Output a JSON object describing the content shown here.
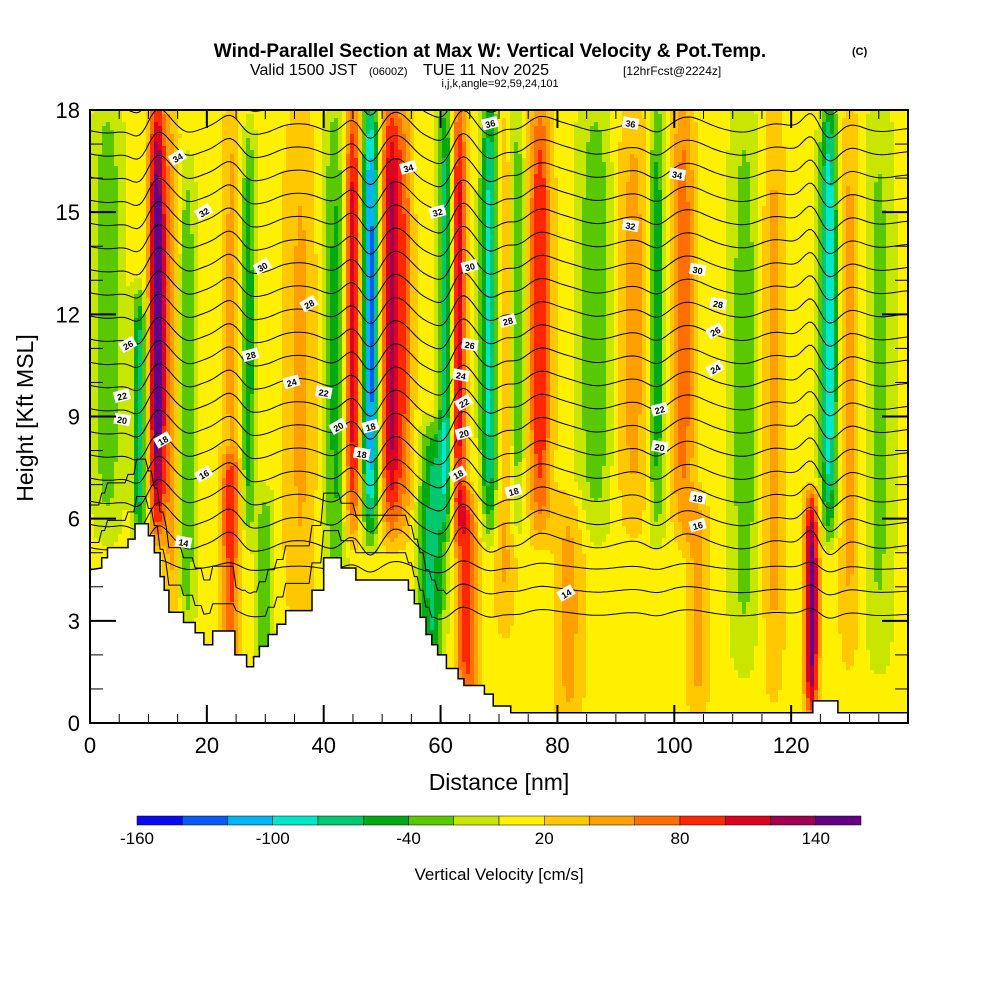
{
  "title": {
    "main": "Wind-Parallel Section at Max W: Vertical Velocity & Pot.Temp.",
    "copyright": "(C)",
    "valid_prefix": "Valid 1500 JST",
    "valid_utc": "(0600Z)",
    "valid_date": "TUE 11 Nov 2025",
    "forecast": "[12hrFcst@2224z]",
    "indices": "i,j,k,angle=92,59,24,101"
  },
  "chart_data": {
    "type": "heatmap",
    "title": "Wind-Parallel Section at Max W: Vertical Velocity & Pot.Temp.",
    "xlabel": "Distance [nm]",
    "ylabel": "Height [Kft MSL]",
    "xlim": [
      0,
      140
    ],
    "ylim": [
      0,
      18
    ],
    "x_ticks": [
      0,
      20,
      40,
      60,
      80,
      100,
      120
    ],
    "x_tick_labels": [
      "0",
      "20",
      "40",
      "60",
      "80",
      "100",
      "120"
    ],
    "x_minor_step": 5,
    "y_ticks": [
      0,
      3,
      6,
      9,
      12,
      15,
      18
    ],
    "y_tick_labels": [
      "0",
      "3",
      "6",
      "9",
      "12",
      "15",
      "18"
    ],
    "y_minor_step": 1,
    "colorbar": {
      "title": "Vertical Velocity [cm/s]",
      "levels": [
        -160,
        -140,
        -120,
        -100,
        -80,
        -60,
        -40,
        -20,
        0,
        20,
        40,
        60,
        80,
        100,
        120,
        140,
        160
      ],
      "tick_labels": [
        "-160",
        "-100",
        "-40",
        "20",
        "80",
        "140"
      ],
      "tick_values": [
        -160,
        -100,
        -40,
        20,
        80,
        140
      ],
      "colors": [
        "#0a0af0",
        "#0a5af5",
        "#00b4f0",
        "#00e6c8",
        "#00c86e",
        "#00aa14",
        "#5ac800",
        "#c8e600",
        "#fff000",
        "#ffc800",
        "#ffa000",
        "#ff6e00",
        "#ff2800",
        "#dc0023",
        "#a00050",
        "#640087"
      ],
      "placement": "bottom"
    },
    "vertical_velocity_bands": [
      {
        "x": 3,
        "peak": -45,
        "width": 2.5,
        "zmin": 6,
        "zmax": 18
      },
      {
        "x": 8.5,
        "peak": -80,
        "width": 1.2,
        "zmin": 6,
        "zmax": 12
      },
      {
        "x": 11.5,
        "peak": 150,
        "width": 1.4,
        "zmin": 6,
        "zmax": 18
      },
      {
        "x": 14,
        "peak": 45,
        "width": 1.5,
        "zmin": 3,
        "zmax": 18
      },
      {
        "x": 16.5,
        "peak": -50,
        "width": 1.5,
        "zmin": 3,
        "zmax": 16
      },
      {
        "x": 24,
        "peak": 75,
        "width": 1.6,
        "zmin": 2,
        "zmax": 7
      },
      {
        "x": 24.5,
        "peak": 40,
        "width": 2,
        "zmin": 6,
        "zmax": 18
      },
      {
        "x": 27,
        "peak": -70,
        "width": 1.3,
        "zmin": 6,
        "zmax": 17
      },
      {
        "x": 30,
        "peak": -45,
        "width": 1.5,
        "zmin": 2,
        "zmax": 6
      },
      {
        "x": 36,
        "peak": 35,
        "width": 3,
        "zmin": 3,
        "zmax": 18
      },
      {
        "x": 42,
        "peak": -55,
        "width": 2,
        "zmin": 4,
        "zmax": 18
      },
      {
        "x": 45,
        "peak": 110,
        "width": 1.5,
        "zmin": 6,
        "zmax": 18
      },
      {
        "x": 48,
        "peak": -140,
        "width": 1.5,
        "zmin": 6,
        "zmax": 18
      },
      {
        "x": 51.5,
        "peak": 120,
        "width": 1.8,
        "zmin": 6,
        "zmax": 18
      },
      {
        "x": 54,
        "peak": 50,
        "width": 1.5,
        "zmin": 6,
        "zmax": 18
      },
      {
        "x": 58.5,
        "peak": -75,
        "width": 2.2,
        "zmin": 2,
        "zmax": 8
      },
      {
        "x": 61,
        "peak": -100,
        "width": 1.3,
        "zmin": 6,
        "zmax": 18
      },
      {
        "x": 63,
        "peak": 110,
        "width": 1.5,
        "zmin": 6,
        "zmax": 18
      },
      {
        "x": 64.5,
        "peak": 80,
        "width": 2,
        "zmin": 1,
        "zmax": 6
      },
      {
        "x": 68.5,
        "peak": -105,
        "width": 1.6,
        "zmin": 6,
        "zmax": 18
      },
      {
        "x": 71,
        "peak": 45,
        "width": 2,
        "zmin": 3,
        "zmax": 18
      },
      {
        "x": 73,
        "peak": -55,
        "width": 1.5,
        "zmin": 6,
        "zmax": 18
      },
      {
        "x": 77,
        "peak": 90,
        "width": 2,
        "zmin": 6,
        "zmax": 18
      },
      {
        "x": 82,
        "peak": 40,
        "width": 2.5,
        "zmin": 0.5,
        "zmax": 6
      },
      {
        "x": 86.5,
        "peak": -45,
        "width": 3,
        "zmin": 6,
        "zmax": 18
      },
      {
        "x": 93,
        "peak": 40,
        "width": 3,
        "zmin": 6,
        "zmax": 18
      },
      {
        "x": 97,
        "peak": -65,
        "width": 1.5,
        "zmin": 6,
        "zmax": 18
      },
      {
        "x": 101.5,
        "peak": 65,
        "width": 2,
        "zmin": 6,
        "zmax": 18
      },
      {
        "x": 104,
        "peak": 40,
        "width": 2,
        "zmin": 1,
        "zmax": 6
      },
      {
        "x": 112,
        "peak": -40,
        "width": 2.5,
        "zmin": 2,
        "zmax": 18
      },
      {
        "x": 117,
        "peak": 40,
        "width": 2,
        "zmin": 1,
        "zmax": 18
      },
      {
        "x": 123.5,
        "peak": 140,
        "width": 1.2,
        "zmin": 1,
        "zmax": 6
      },
      {
        "x": 126.5,
        "peak": -110,
        "width": 1.5,
        "zmin": 6,
        "zmax": 18
      },
      {
        "x": 130,
        "peak": 40,
        "width": 2,
        "zmin": 2,
        "zmax": 18
      },
      {
        "x": 135,
        "peak": -35,
        "width": 2.5,
        "zmin": 2,
        "zmax": 18
      }
    ],
    "potential_temperature": {
      "levels": [
        14,
        15,
        16,
        17,
        18,
        19,
        20,
        21,
        22,
        23,
        24,
        25,
        26,
        27,
        28,
        29,
        30,
        31,
        32,
        33,
        34,
        35,
        36,
        37
      ],
      "labeled_levels": [
        "14",
        "16",
        "18",
        "20",
        "22",
        "24",
        "26",
        "28",
        "30",
        "32",
        "34",
        "36"
      ],
      "labels": [
        {
          "text": "36",
          "x": 68.5,
          "y": 17.6
        },
        {
          "text": "36",
          "x": 92.5,
          "y": 17.6
        },
        {
          "text": "34",
          "x": 15,
          "y": 16.6
        },
        {
          "text": "34",
          "x": 54.5,
          "y": 16.3
        },
        {
          "text": "34",
          "x": 100.5,
          "y": 16.1
        },
        {
          "text": "32",
          "x": 19.5,
          "y": 15.0
        },
        {
          "text": "32",
          "x": 59.5,
          "y": 15.0
        },
        {
          "text": "32",
          "x": 92.5,
          "y": 14.6
        },
        {
          "text": "30",
          "x": 29.5,
          "y": 13.4
        },
        {
          "text": "30",
          "x": 65,
          "y": 13.4
        },
        {
          "text": "30",
          "x": 104,
          "y": 13.3
        },
        {
          "text": "28",
          "x": 37.5,
          "y": 12.3
        },
        {
          "text": "28",
          "x": 71.5,
          "y": 11.8
        },
        {
          "text": "28",
          "x": 107.5,
          "y": 12.3
        },
        {
          "text": "26",
          "x": 6.5,
          "y": 11.1
        },
        {
          "text": "28",
          "x": 27.5,
          "y": 10.8
        },
        {
          "text": "26",
          "x": 65,
          "y": 11.1
        },
        {
          "text": "26",
          "x": 107,
          "y": 11.5
        },
        {
          "text": "24",
          "x": 34.5,
          "y": 10.0
        },
        {
          "text": "24",
          "x": 63.5,
          "y": 10.2
        },
        {
          "text": "24",
          "x": 107,
          "y": 10.4
        },
        {
          "text": "22",
          "x": 5.5,
          "y": 9.6
        },
        {
          "text": "22",
          "x": 40,
          "y": 9.7
        },
        {
          "text": "22",
          "x": 64,
          "y": 9.4
        },
        {
          "text": "22",
          "x": 97.5,
          "y": 9.2
        },
        {
          "text": "20",
          "x": 5.5,
          "y": 8.9
        },
        {
          "text": "20",
          "x": 42.5,
          "y": 8.7
        },
        {
          "text": "20",
          "x": 64,
          "y": 8.5
        },
        {
          "text": "20",
          "x": 97.5,
          "y": 8.1
        },
        {
          "text": "18",
          "x": 12.5,
          "y": 8.3
        },
        {
          "text": "18",
          "x": 48,
          "y": 8.7
        },
        {
          "text": "18",
          "x": 46.5,
          "y": 7.9
        },
        {
          "text": "18",
          "x": 63,
          "y": 7.3
        },
        {
          "text": "18",
          "x": 72.5,
          "y": 6.8
        },
        {
          "text": "18",
          "x": 104,
          "y": 6.6
        },
        {
          "text": "16",
          "x": 19.5,
          "y": 7.3
        },
        {
          "text": "16",
          "x": 104,
          "y": 5.8
        },
        {
          "text": "14",
          "x": 16,
          "y": 5.3
        },
        {
          "text": "14",
          "x": 81.5,
          "y": 3.8
        }
      ]
    },
    "terrain": {
      "description": "white masked terrain profile",
      "points": [
        [
          0,
          4.5
        ],
        [
          2,
          4.55
        ],
        [
          2,
          4.85
        ],
        [
          3,
          4.85
        ],
        [
          3,
          5.15
        ],
        [
          6.5,
          5.15
        ],
        [
          6.5,
          5.4
        ],
        [
          7.7,
          5.4
        ],
        [
          7.7,
          5.85
        ],
        [
          10,
          5.85
        ],
        [
          10,
          5.5
        ],
        [
          11,
          5.5
        ],
        [
          11,
          5.0
        ],
        [
          12,
          5.0
        ],
        [
          12,
          4.3
        ],
        [
          12.7,
          4.3
        ],
        [
          12.7,
          3.9
        ],
        [
          13.5,
          3.9
        ],
        [
          13.5,
          3.25
        ],
        [
          16,
          3.25
        ],
        [
          16,
          2.95
        ],
        [
          18,
          2.95
        ],
        [
          18,
          2.65
        ],
        [
          19.5,
          2.65
        ],
        [
          19.5,
          2.3
        ],
        [
          21,
          2.3
        ],
        [
          21,
          2.7
        ],
        [
          24.8,
          2.7
        ],
        [
          24.8,
          2.0
        ],
        [
          26.8,
          2.0
        ],
        [
          26.8,
          1.65
        ],
        [
          28,
          1.65
        ],
        [
          28,
          1.95
        ],
        [
          29,
          1.95
        ],
        [
          29,
          2.25
        ],
        [
          30.5,
          2.25
        ],
        [
          30.5,
          2.6
        ],
        [
          32,
          2.6
        ],
        [
          32,
          2.9
        ],
        [
          33.5,
          2.9
        ],
        [
          33.5,
          3.3
        ],
        [
          38,
          3.3
        ],
        [
          38,
          3.9
        ],
        [
          40,
          3.9
        ],
        [
          40,
          4.85
        ],
        [
          43,
          4.85
        ],
        [
          43,
          4.55
        ],
        [
          45.5,
          4.55
        ],
        [
          45.5,
          4.2
        ],
        [
          54.5,
          4.2
        ],
        [
          54.5,
          3.9
        ],
        [
          55.5,
          3.9
        ],
        [
          55.5,
          3.5
        ],
        [
          56.5,
          3.5
        ],
        [
          56.5,
          3.1
        ],
        [
          57.5,
          3.1
        ],
        [
          57.5,
          2.6
        ],
        [
          58.5,
          2.6
        ],
        [
          58.5,
          2.3
        ],
        [
          59.5,
          2.3
        ],
        [
          59.5,
          2.0
        ],
        [
          61,
          2.0
        ],
        [
          61,
          1.6
        ],
        [
          63,
          1.6
        ],
        [
          63,
          1.3
        ],
        [
          64,
          1.3
        ],
        [
          64,
          1.1
        ],
        [
          67.5,
          1.1
        ],
        [
          67.5,
          0.85
        ],
        [
          69,
          0.85
        ],
        [
          69,
          0.5
        ],
        [
          72,
          0.5
        ],
        [
          72,
          0.3
        ],
        [
          123.7,
          0.3
        ],
        [
          123.7,
          0.65
        ],
        [
          128,
          0.65
        ],
        [
          128,
          0.3
        ],
        [
          140,
          0.3
        ]
      ]
    }
  }
}
